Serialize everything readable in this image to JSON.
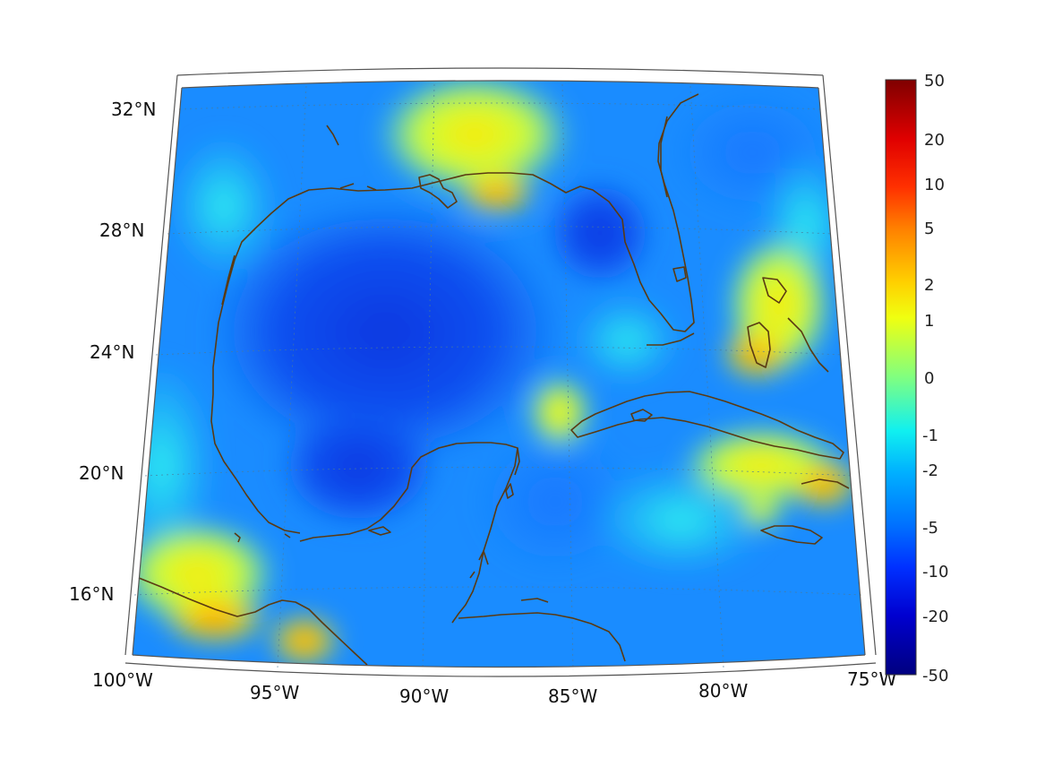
{
  "map": {
    "projection": "conic",
    "region": "Gulf of Mexico and Caribbean",
    "grid": true,
    "latitude_labels": [
      "32°N",
      "28°N",
      "24°N",
      "20°N",
      "16°N"
    ],
    "longitude_labels": [
      "100°W",
      "95°W",
      "90°W",
      "85°W",
      "80°W",
      "75°W"
    ],
    "coastline_color": "#5a3a12",
    "frame_color": "#555555"
  },
  "colorbar": {
    "scale": "symmetric-log",
    "colormap": "jet",
    "tick_labels": [
      "50",
      "20",
      "10",
      "5",
      "2",
      "1",
      "0",
      "-1",
      "-2",
      "-5",
      "-10",
      "-20",
      "-50"
    ],
    "colors": [
      "#800000",
      "#ff0000",
      "#ff8000",
      "#ffff00",
      "#80ff80",
      "#00ffff",
      "#0080ff",
      "#0000ff",
      "#000080"
    ]
  }
}
